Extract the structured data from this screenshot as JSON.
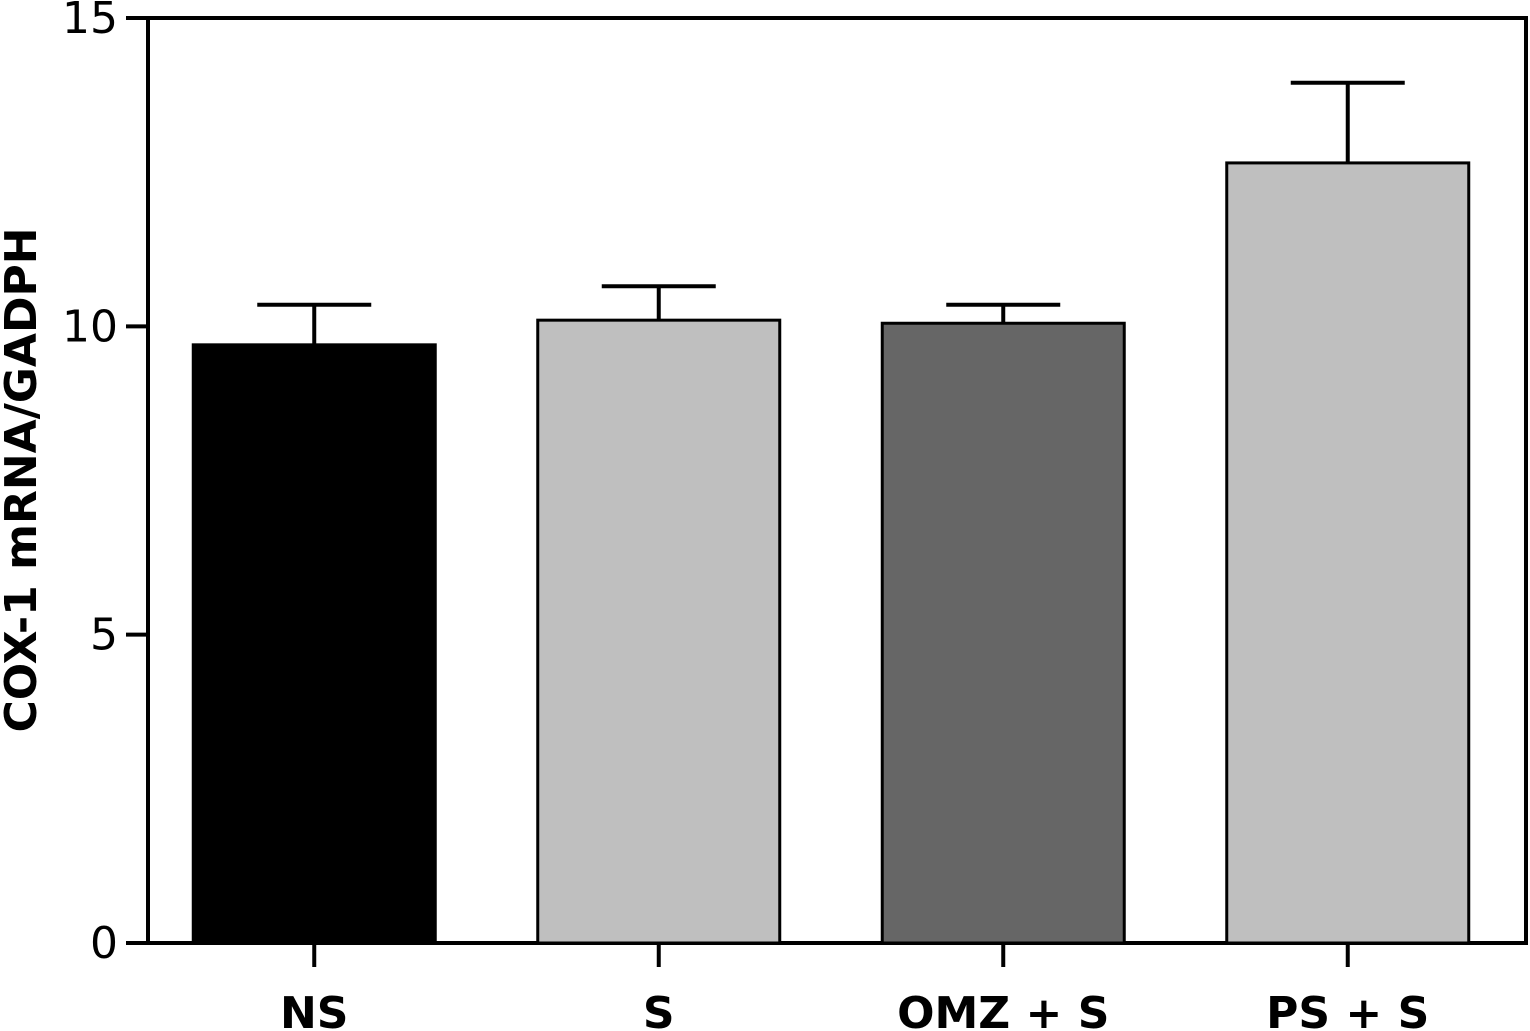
{
  "chart_data": {
    "type": "bar",
    "title": "",
    "xlabel": "",
    "ylabel": "COX-1 mRNA/GADPH",
    "ylim": [
      0,
      15
    ],
    "yticks": [
      0,
      5,
      10,
      15
    ],
    "yticks_labels": [
      "0",
      "5",
      "10",
      "15"
    ],
    "grid": false,
    "legend": "none",
    "categories": [
      "NS",
      "S",
      "OMZ + S",
      "PS + S"
    ],
    "values": [
      9.7,
      10.1,
      10.05,
      12.65
    ],
    "errors": [
      0.65,
      0.55,
      0.3,
      1.3
    ],
    "colors": [
      "#000000",
      "#bfbfbf",
      "#666666",
      "#bfbfbf"
    ]
  }
}
